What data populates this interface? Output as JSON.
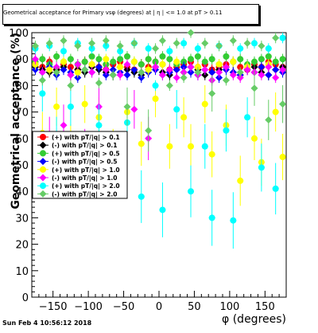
{
  "chart_data": {
    "type": "scatter",
    "title": "Geometrical acceptance for Primary vsφ (degrees) at | η | <= 1.0 at pT > 0.11",
    "xlabel": "φ (degrees)",
    "ylabel": "Geometrical acceptance (%)",
    "xlim": [
      -180,
      180
    ],
    "ylim": [
      0,
      100
    ],
    "xticks": [
      -150,
      -100,
      -50,
      0,
      50,
      100,
      150
    ],
    "yticks": [
      0,
      10,
      20,
      30,
      40,
      50,
      60,
      70,
      80,
      90,
      100
    ],
    "grid": false,
    "legend_position": "left",
    "series": [
      {
        "name": "(+) with pT/|q| > 0.1",
        "color": "#ff0000",
        "marker": "circle",
        "x": [
          -175,
          -165,
          -155,
          -145,
          -135,
          -125,
          -115,
          -105,
          -95,
          -85,
          -75,
          -65,
          -55,
          -45,
          -35,
          -25,
          -15,
          -5,
          5,
          15,
          25,
          35,
          45,
          55,
          65,
          75,
          85,
          95,
          105,
          115,
          125,
          135,
          145,
          155,
          165,
          175
        ],
        "y": [
          88,
          87,
          89,
          86,
          88,
          87,
          86,
          89,
          88,
          87,
          86,
          88,
          89,
          87,
          86,
          88,
          87,
          89,
          88,
          86,
          87,
          88,
          89,
          87,
          88,
          86,
          87,
          88,
          89,
          87,
          86,
          88,
          87,
          89,
          88,
          87
        ]
      },
      {
        "name": "(-) with pT/|q| > 0.1",
        "color": "#000000",
        "marker": "diamond",
        "x": [
          -175,
          -165,
          -155,
          -145,
          -135,
          -125,
          -115,
          -105,
          -95,
          -85,
          -75,
          -65,
          -55,
          -45,
          -35,
          -25,
          -15,
          -5,
          5,
          15,
          25,
          35,
          45,
          55,
          65,
          75,
          85,
          95,
          105,
          115,
          125,
          135,
          145,
          155,
          165,
          175
        ],
        "y": [
          87,
          86,
          85,
          86,
          87,
          84,
          86,
          85,
          87,
          86,
          85,
          84,
          87,
          86,
          85,
          84,
          86,
          87,
          85,
          84,
          86,
          85,
          87,
          86,
          84,
          85,
          86,
          87,
          85,
          84,
          86,
          87,
          85,
          84,
          86,
          87
        ]
      },
      {
        "name": "(+) with pT/|q| > 0.5",
        "color": "#33cc33",
        "marker": "circle",
        "x": [
          -175,
          -165,
          -155,
          -145,
          -135,
          -125,
          -115,
          -105,
          -95,
          -85,
          -75,
          -65,
          -55,
          -45,
          -35,
          -25,
          -15,
          -5,
          5,
          15,
          25,
          35,
          45,
          55,
          65,
          75,
          85,
          95,
          105,
          115,
          125,
          135,
          145,
          155,
          165,
          175
        ],
        "y": [
          89,
          90,
          88,
          91,
          89,
          90,
          88,
          89,
          91,
          90,
          88,
          89,
          90,
          91,
          89,
          88,
          90,
          89,
          91,
          90,
          88,
          89,
          90,
          91,
          89,
          90,
          88,
          91,
          89,
          90,
          88,
          89,
          90,
          91,
          89,
          90
        ]
      },
      {
        "name": "(-) with pT/|q| > 0.5",
        "color": "#0000ff",
        "marker": "diamond",
        "x": [
          -175,
          -165,
          -155,
          -145,
          -135,
          -125,
          -115,
          -105,
          -95,
          -85,
          -75,
          -65,
          -55,
          -45,
          -35,
          -25,
          -15,
          -5,
          5,
          15,
          25,
          35,
          45,
          55,
          65,
          75,
          85,
          95,
          105,
          115,
          125,
          135,
          145,
          155,
          165,
          175
        ],
        "y": [
          86,
          85,
          87,
          84,
          86,
          85,
          83,
          86,
          85,
          87,
          84,
          86,
          85,
          84,
          86,
          83,
          85,
          86,
          84,
          85,
          86,
          87,
          85,
          84,
          86,
          85,
          83,
          86,
          85,
          84,
          86,
          85,
          87,
          84,
          86,
          85
        ]
      },
      {
        "name": "(+) with pT/|q| > 1.0",
        "color": "#ffff00",
        "marker": "circle",
        "x": [
          -175,
          -165,
          -155,
          -145,
          -135,
          -125,
          -115,
          -105,
          -95,
          -85,
          -75,
          -65,
          -55,
          -45,
          -35,
          -25,
          -15,
          -5,
          5,
          15,
          25,
          35,
          45,
          55,
          65,
          75,
          85,
          95,
          105,
          115,
          125,
          135,
          145,
          155,
          165,
          175
        ],
        "y": [
          88,
          62,
          86,
          72,
          89,
          57,
          85,
          73,
          88,
          68,
          90,
          55,
          87,
          70,
          89,
          58,
          86,
          75,
          88,
          57,
          89,
          68,
          57,
          87,
          73,
          54,
          88,
          65,
          89,
          44,
          87,
          60,
          51,
          88,
          70,
          53
        ]
      },
      {
        "name": "(-) with pT/|q| > 1.0",
        "color": "#ff00ff",
        "marker": "diamond",
        "x": [
          -175,
          -165,
          -155,
          -145,
          -135,
          -125,
          -115,
          -105,
          -95,
          -85,
          -75,
          -65,
          -55,
          -45,
          -35,
          -25,
          -15,
          -5,
          5,
          15,
          25,
          35,
          45,
          55,
          65,
          75,
          85,
          95,
          105,
          115,
          125,
          135,
          145,
          155,
          165,
          175
        ],
        "y": [
          90,
          85,
          60,
          87,
          65,
          84,
          88,
          55,
          85,
          72,
          86,
          51,
          84,
          88,
          71,
          85,
          60,
          87,
          84,
          86,
          83,
          85,
          87,
          84,
          86,
          82,
          85,
          87,
          84,
          83,
          86,
          85,
          84,
          87,
          83,
          86
        ]
      },
      {
        "name": "(+) with pT/|q| > 2.0",
        "color": "#00ffff",
        "marker": "circle",
        "x": [
          -175,
          -165,
          -155,
          -145,
          -135,
          -125,
          -115,
          -105,
          -95,
          -85,
          -75,
          -65,
          -55,
          -45,
          -35,
          -25,
          -15,
          -5,
          5,
          15,
          25,
          35,
          45,
          55,
          65,
          75,
          85,
          95,
          105,
          115,
          125,
          135,
          145,
          155,
          165,
          175
        ],
        "y": [
          94,
          77,
          95,
          60,
          93,
          72,
          96,
          53,
          94,
          65,
          95,
          50,
          93,
          66,
          96,
          38,
          94,
          80,
          33,
          93,
          71,
          96,
          40,
          94,
          57,
          30,
          95,
          63,
          29,
          94,
          68,
          96,
          49,
          94,
          41,
          98
        ]
      },
      {
        "name": "(-) with pT/|q| > 2.0",
        "color": "#66cc66",
        "marker": "diamond",
        "x": [
          -175,
          -165,
          -155,
          -145,
          -135,
          -125,
          -115,
          -105,
          -95,
          -85,
          -75,
          -65,
          -55,
          -45,
          -35,
          -25,
          -15,
          -5,
          5,
          15,
          25,
          35,
          45,
          55,
          65,
          75,
          85,
          95,
          105,
          115,
          125,
          135,
          145,
          155,
          165,
          175
        ],
        "y": [
          95,
          82,
          96,
          85,
          97,
          80,
          95,
          86,
          96,
          81,
          97,
          84,
          95,
          72,
          96,
          85,
          63,
          94,
          97,
          80,
          96,
          83,
          100,
          85,
          96,
          77,
          95,
          82,
          97,
          85,
          96,
          79,
          95,
          67,
          98,
          73
        ]
      }
    ]
  },
  "footer": {
    "timestamp": "Sun Feb  4 10:56:12 2018"
  }
}
